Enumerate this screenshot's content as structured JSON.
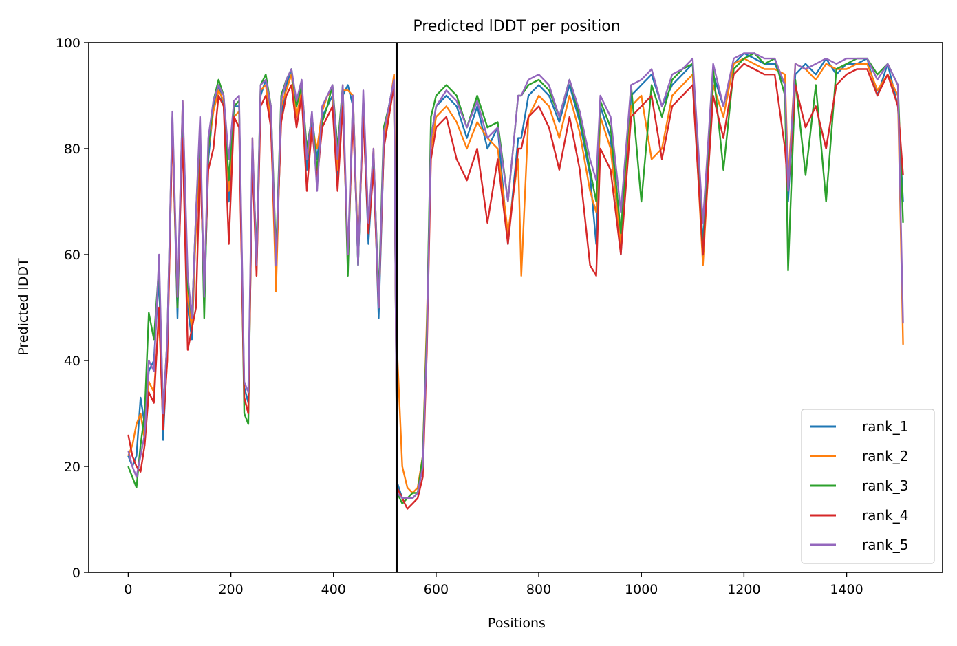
{
  "chart_data": {
    "type": "line",
    "title": "Predicted lDDT per position",
    "xlabel": "Positions",
    "ylabel": "Predicted lDDT",
    "xlim": [
      -77,
      1587
    ],
    "ylim": [
      0,
      100
    ],
    "xticks": [
      0,
      200,
      400,
      600,
      800,
      1000,
      1200,
      1400
    ],
    "yticks": [
      0,
      20,
      40,
      60,
      80,
      100
    ],
    "grid": false,
    "legend_position": "lower-right",
    "chain_break_x": 523,
    "x": [
      0,
      8,
      16,
      24,
      32,
      40,
      50,
      60,
      68,
      76,
      86,
      96,
      106,
      116,
      124,
      132,
      140,
      148,
      156,
      166,
      176,
      186,
      196,
      206,
      216,
      226,
      234,
      242,
      250,
      258,
      268,
      278,
      288,
      298,
      308,
      318,
      328,
      338,
      348,
      358,
      368,
      378,
      388,
      398,
      408,
      418,
      428,
      438,
      448,
      458,
      468,
      478,
      488,
      498,
      508,
      518,
      524,
      534,
      544,
      554,
      564,
      574,
      582,
      590,
      600,
      620,
      640,
      660,
      680,
      700,
      720,
      740,
      760,
      766,
      780,
      800,
      820,
      840,
      860,
      880,
      900,
      912,
      920,
      940,
      960,
      980,
      1000,
      1020,
      1040,
      1060,
      1080,
      1100,
      1120,
      1140,
      1160,
      1180,
      1200,
      1220,
      1240,
      1260,
      1280,
      1286,
      1300,
      1320,
      1340,
      1360,
      1380,
      1400,
      1420,
      1440,
      1460,
      1480,
      1500,
      1510
    ],
    "series": [
      {
        "name": "rank_1",
        "color": "#1f77b4",
        "values": [
          22,
          20,
          22,
          33,
          28,
          38,
          40,
          56,
          25,
          42,
          85,
          48,
          88,
          50,
          44,
          66,
          82,
          50,
          78,
          88,
          92,
          88,
          70,
          88,
          88,
          35,
          32,
          80,
          57,
          90,
          93,
          86,
          56,
          86,
          92,
          95,
          88,
          92,
          76,
          86,
          78,
          86,
          88,
          90,
          74,
          90,
          92,
          88,
          58,
          88,
          62,
          78,
          48,
          80,
          88,
          93,
          17,
          14,
          14,
          14,
          15,
          20,
          45,
          82,
          88,
          90,
          88,
          82,
          88,
          80,
          84,
          62,
          82,
          82,
          90,
          92,
          90,
          85,
          92,
          85,
          75,
          62,
          88,
          82,
          60,
          90,
          92,
          94,
          88,
          92,
          94,
          96,
          62,
          94,
          88,
          96,
          98,
          97,
          96,
          96,
          92,
          70,
          94,
          96,
          94,
          97,
          94,
          96,
          96,
          97,
          90,
          96,
          88,
          70
        ]
      },
      {
        "name": "rank_2",
        "color": "#ff7f0e",
        "values": [
          22,
          24,
          28,
          30,
          25,
          36,
          34,
          48,
          28,
          40,
          84,
          50,
          89,
          52,
          46,
          65,
          80,
          52,
          80,
          87,
          91,
          89,
          72,
          86,
          87,
          33,
          30,
          82,
          56,
          91,
          92,
          85,
          53,
          88,
          91,
          94,
          86,
          91,
          78,
          84,
          80,
          87,
          90,
          91,
          76,
          91,
          91,
          90,
          60,
          89,
          65,
          80,
          50,
          82,
          87,
          94,
          42,
          20,
          16,
          15,
          16,
          22,
          48,
          80,
          86,
          88,
          85,
          80,
          85,
          82,
          80,
          64,
          78,
          56,
          86,
          90,
          88,
          82,
          90,
          83,
          72,
          68,
          86,
          80,
          62,
          88,
          90,
          78,
          80,
          90,
          92,
          94,
          58,
          92,
          86,
          96,
          97,
          96,
          95,
          95,
          94,
          74,
          96,
          95,
          93,
          96,
          95,
          95,
          96,
          96,
          91,
          94,
          90,
          43
        ]
      },
      {
        "name": "rank_3",
        "color": "#2ca02c",
        "values": [
          20,
          18,
          16,
          24,
          30,
          49,
          44,
          58,
          30,
          44,
          86,
          50,
          88,
          54,
          48,
          68,
          84,
          48,
          80,
          89,
          93,
          90,
          74,
          88,
          89,
          30,
          28,
          80,
          60,
          92,
          94,
          88,
          60,
          90,
          93,
          95,
          88,
          92,
          80,
          86,
          76,
          85,
          88,
          92,
          80,
          92,
          56,
          90,
          58,
          90,
          64,
          79,
          52,
          84,
          88,
          92,
          15,
          13,
          14,
          15,
          15,
          22,
          46,
          86,
          90,
          92,
          90,
          84,
          90,
          84,
          85,
          70,
          90,
          90,
          92,
          93,
          91,
          86,
          93,
          86,
          76,
          70,
          89,
          84,
          64,
          92,
          70,
          92,
          86,
          93,
          95,
          96,
          60,
          95,
          76,
          95,
          97,
          98,
          96,
          97,
          90,
          57,
          93,
          75,
          92,
          70,
          95,
          96,
          97,
          97,
          94,
          96,
          92,
          66
        ]
      },
      {
        "name": "rank_4",
        "color": "#d62728",
        "values": [
          26,
          22,
          20,
          19,
          24,
          34,
          32,
          50,
          27,
          40,
          84,
          52,
          82,
          42,
          46,
          50,
          78,
          54,
          76,
          80,
          90,
          88,
          62,
          86,
          84,
          33,
          30,
          78,
          56,
          88,
          90,
          84,
          58,
          85,
          90,
          92,
          84,
          90,
          72,
          84,
          74,
          84,
          86,
          88,
          72,
          88,
          60,
          86,
          60,
          86,
          64,
          76,
          50,
          80,
          86,
          92,
          16,
          14,
          12,
          13,
          14,
          18,
          42,
          78,
          84,
          86,
          78,
          74,
          80,
          66,
          78,
          62,
          80,
          80,
          86,
          88,
          84,
          76,
          86,
          76,
          58,
          56,
          80,
          76,
          60,
          86,
          88,
          90,
          78,
          88,
          90,
          92,
          60,
          90,
          82,
          94,
          96,
          95,
          94,
          94,
          80,
          72,
          92,
          84,
          88,
          80,
          92,
          94,
          95,
          95,
          90,
          94,
          88,
          75
        ]
      },
      {
        "name": "rank_5",
        "color": "#9467bd",
        "values": [
          23,
          20,
          18,
          22,
          26,
          40,
          38,
          60,
          30,
          44,
          87,
          52,
          89,
          56,
          48,
          68,
          86,
          52,
          82,
          89,
          92,
          90,
          78,
          89,
          90,
          36,
          34,
          82,
          58,
          92,
          93,
          88,
          58,
          89,
          93,
          95,
          89,
          93,
          78,
          87,
          72,
          88,
          90,
          92,
          78,
          92,
          60,
          90,
          58,
          91,
          66,
          80,
          50,
          83,
          88,
          93,
          15,
          14,
          14,
          14,
          15,
          20,
          44,
          82,
          88,
          91,
          89,
          84,
          89,
          82,
          84,
          70,
          90,
          90,
          93,
          94,
          92,
          86,
          93,
          87,
          78,
          74,
          90,
          86,
          68,
          92,
          93,
          95,
          88,
          94,
          95,
          97,
          66,
          96,
          88,
          97,
          98,
          98,
          97,
          97,
          92,
          72,
          96,
          95,
          96,
          97,
          96,
          97,
          97,
          97,
          93,
          96,
          92,
          47
        ]
      }
    ]
  }
}
